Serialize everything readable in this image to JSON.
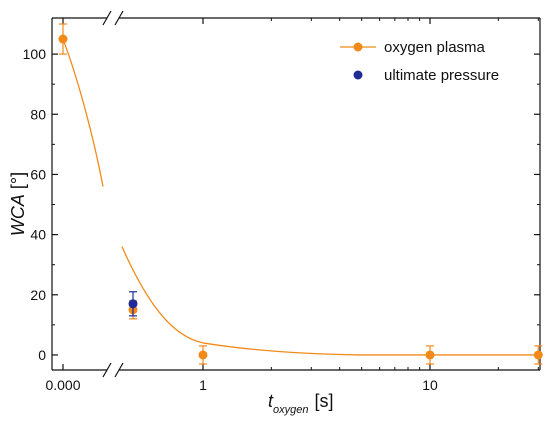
{
  "chart_data": {
    "type": "scatter",
    "title": "",
    "xlabel": {
      "main": "t",
      "subscript": "oxygen",
      "unit": "[s]"
    },
    "ylabel": {
      "main": "WCA",
      "unit": "[°]"
    },
    "ylim": [
      -5,
      112
    ],
    "yticks": [
      0,
      20,
      40,
      60,
      80,
      100
    ],
    "xscale": "broken: linear segment at 0, log segment from 1 to 30",
    "xticks": [
      "0.000",
      "1",
      "10"
    ],
    "grid": false,
    "legend_position": "top-right",
    "colors": {
      "oxygen_plasma": "#f28a1a",
      "ultimate_pressure": "#1f2b96",
      "axes": "#111111"
    },
    "series": [
      {
        "name": "oxygen plasma",
        "points": [
          {
            "x": 0,
            "y": 105,
            "err": 5
          },
          {
            "x": 0.5,
            "y": 15,
            "err": 3
          },
          {
            "x": 1,
            "y": 0,
            "err": 3
          },
          {
            "x": 10,
            "y": 0,
            "err": 3
          },
          {
            "x": 30,
            "y": 0,
            "err": 3
          }
        ],
        "fit": [
          {
            "x": 0,
            "y": 105
          },
          {
            "x": 0.32,
            "y": 56
          },
          {
            "x": 0.5,
            "y": 15
          },
          {
            "x": 0.75,
            "y": 7.5
          },
          {
            "x": 1,
            "y": 4
          },
          {
            "x": 2,
            "y": 1
          },
          {
            "x": 4,
            "y": 0.2
          },
          {
            "x": 10,
            "y": 0
          },
          {
            "x": 30,
            "y": 0
          }
        ]
      },
      {
        "name": "ultimate pressure",
        "points": [
          {
            "x": 0.5,
            "y": 17,
            "err": 4
          }
        ]
      }
    ]
  }
}
